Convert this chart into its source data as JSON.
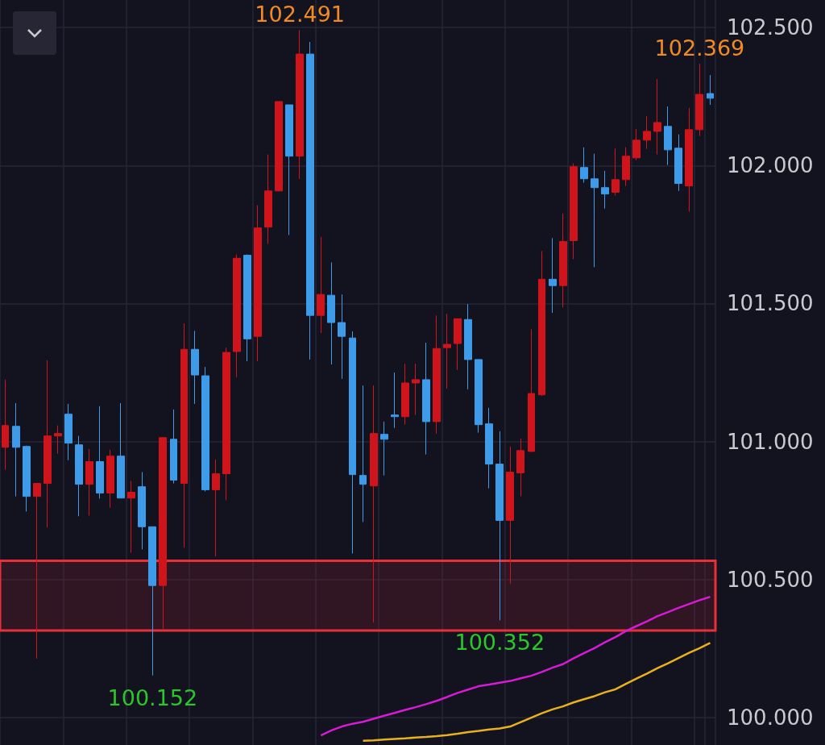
{
  "chart_data": {
    "type": "candlestick",
    "categories": [
      null,
      null,
      null,
      null,
      null,
      null,
      null,
      null,
      null,
      null,
      null,
      null,
      null,
      null,
      null,
      null,
      null,
      null,
      null,
      null,
      null,
      null,
      null,
      null,
      null,
      null,
      null,
      null,
      null,
      null,
      null,
      null,
      null,
      null,
      null,
      null,
      null,
      null,
      null,
      null,
      null,
      null,
      null,
      null,
      null,
      null,
      null,
      null,
      null,
      null,
      null,
      null,
      null,
      null,
      null,
      null,
      null,
      null,
      null,
      null,
      null,
      null,
      null,
      null,
      null,
      null,
      null,
      null
    ],
    "ohlc": [
      [
        100.979,
        101.224,
        100.897,
        101.058
      ],
      [
        101.055,
        101.139,
        100.801,
        100.979
      ],
      [
        100.982,
        100.985,
        100.746,
        100.801
      ],
      [
        100.801,
        100.85,
        100.213,
        100.848
      ],
      [
        100.848,
        101.294,
        100.688,
        101.02
      ],
      [
        101.02,
        101.058,
        100.956,
        101.029
      ],
      [
        101.099,
        101.136,
        100.932,
        100.994
      ],
      [
        100.988,
        101.02,
        100.729,
        100.845
      ],
      [
        100.845,
        100.973,
        100.731,
        100.927
      ],
      [
        100.927,
        101.128,
        100.793,
        100.813
      ],
      [
        100.813,
        100.97,
        100.76,
        100.947
      ],
      [
        100.947,
        101.139,
        100.795,
        100.795
      ],
      [
        100.795,
        100.857,
        100.597,
        100.816
      ],
      [
        100.836,
        100.889,
        100.609,
        100.691
      ],
      [
        100.691,
        100.691,
        100.152,
        100.478
      ],
      [
        100.478,
        101.014,
        100.321,
        101.014
      ],
      [
        101.008,
        101.116,
        100.848,
        100.86
      ],
      [
        100.848,
        101.428,
        100.615,
        101.334
      ],
      [
        101.334,
        101.401,
        101.136,
        101.241
      ],
      [
        101.238,
        101.27,
        100.819,
        100.825
      ],
      [
        100.825,
        100.935,
        100.583,
        100.883
      ],
      [
        100.883,
        101.34,
        100.787,
        101.323
      ],
      [
        101.326,
        101.678,
        101.233,
        101.664
      ],
      [
        101.675,
        101.678,
        101.291,
        101.372
      ],
      [
        101.381,
        101.856,
        101.291,
        101.774
      ],
      [
        101.777,
        102.04,
        101.716,
        101.908
      ],
      [
        101.908,
        102.232,
        101.908,
        102.232
      ],
      [
        102.22,
        102.22,
        101.748,
        102.034
      ],
      [
        102.034,
        102.491,
        101.952,
        102.404
      ],
      [
        102.404,
        102.448,
        101.297,
        101.457
      ],
      [
        101.457,
        101.742,
        101.393,
        101.533
      ],
      [
        101.53,
        101.649,
        101.279,
        101.431
      ],
      [
        101.431,
        101.533,
        101.227,
        101.381
      ],
      [
        101.375,
        101.399,
        100.594,
        100.88
      ],
      [
        100.877,
        101.203,
        100.708,
        100.845
      ],
      [
        100.839,
        101.203,
        100.344,
        101.029
      ],
      [
        101.026,
        101.072,
        100.877,
        101.008
      ],
      [
        101.096,
        101.25,
        101.049,
        101.09
      ],
      [
        101.09,
        101.282,
        101.061,
        101.212
      ],
      [
        101.212,
        101.282,
        101.096,
        101.224
      ],
      [
        101.224,
        101.358,
        100.953,
        101.072
      ],
      [
        101.072,
        101.457,
        101.029,
        101.337
      ],
      [
        101.34,
        101.463,
        101.192,
        101.352
      ],
      [
        101.355,
        101.445,
        101.259,
        101.445
      ],
      [
        101.442,
        101.498,
        101.189,
        101.297
      ],
      [
        101.297,
        101.297,
        101.032,
        101.061
      ],
      [
        101.064,
        101.122,
        100.83,
        100.918
      ],
      [
        100.918,
        101.037,
        100.352,
        100.714
      ],
      [
        100.714,
        100.982,
        100.484,
        100.889
      ],
      [
        100.886,
        101.011,
        100.801,
        100.967
      ],
      [
        100.964,
        101.407,
        100.962,
        101.174
      ],
      [
        101.169,
        101.69,
        101.166,
        101.588
      ],
      [
        101.588,
        101.737,
        101.466,
        101.565
      ],
      [
        101.565,
        101.827,
        101.486,
        101.725
      ],
      [
        101.728,
        102.008,
        101.661,
        101.996
      ],
      [
        101.993,
        102.066,
        101.938,
        101.952
      ],
      [
        101.952,
        102.043,
        101.632,
        101.92
      ],
      [
        101.92,
        101.981,
        101.844,
        101.897
      ],
      [
        101.903,
        102.063,
        101.891,
        101.949
      ],
      [
        101.949,
        102.066,
        101.926,
        102.034
      ],
      [
        102.028,
        102.133,
        102.019,
        102.092
      ],
      [
        102.092,
        102.179,
        102.06,
        102.124
      ],
      [
        102.124,
        102.314,
        102.04,
        102.156
      ],
      [
        102.142,
        102.214,
        102.002,
        102.057
      ],
      [
        102.063,
        102.113,
        101.908,
        101.935
      ],
      [
        101.926,
        102.209,
        101.833,
        102.13
      ],
      [
        102.13,
        102.369,
        102.107,
        102.258
      ],
      [
        102.261,
        102.328,
        102.22,
        102.244
      ]
    ],
    "colors": [
      "#d0141c",
      "#3d9be9",
      "#3d9be9",
      "#d0141c",
      "#d0141c",
      "#d0141c",
      "#3d9be9",
      "#3d9be9",
      "#d0141c",
      "#3d9be9",
      "#d0141c",
      "#3d9be9",
      "#d0141c",
      "#3d9be9",
      "#3d9be9",
      "#d0141c",
      "#3d9be9",
      "#d0141c",
      "#3d9be9",
      "#3d9be9",
      "#d0141c",
      "#d0141c",
      "#d0141c",
      "#3d9be9",
      "#d0141c",
      "#d0141c",
      "#d0141c",
      "#3d9be9",
      "#d0141c",
      "#3d9be9",
      "#d0141c",
      "#3d9be9",
      "#3d9be9",
      "#3d9be9",
      "#3d9be9",
      "#d0141c",
      "#3d9be9",
      "#3d9be9",
      "#d0141c",
      "#d0141c",
      "#3d9be9",
      "#d0141c",
      "#d0141c",
      "#d0141c",
      "#3d9be9",
      "#3d9be9",
      "#3d9be9",
      "#3d9be9",
      "#d0141c",
      "#d0141c",
      "#d0141c",
      "#d0141c",
      "#3d9be9",
      "#d0141c",
      "#d0141c",
      "#3d9be9",
      "#3d9be9",
      "#3d9be9",
      "#d0141c",
      "#d0141c",
      "#d0141c",
      "#d0141c",
      "#d0141c",
      "#3d9be9",
      "#3d9be9",
      "#d0141c",
      "#d0141c",
      "#3d9be9"
    ],
    "series": [
      {
        "type": "line",
        "color": "#d61ad6",
        "values": [
          null,
          null,
          null,
          null,
          null,
          null,
          null,
          null,
          null,
          null,
          null,
          null,
          null,
          null,
          null,
          null,
          null,
          null,
          null,
          null,
          null,
          null,
          null,
          null,
          null,
          null,
          null,
          null,
          null,
          null,
          99.935,
          99.953,
          99.967,
          99.977,
          99.984,
          99.995,
          100.006,
          100.016,
          100.027,
          100.037,
          100.048,
          100.06,
          100.074,
          100.089,
          100.101,
          100.113,
          100.119,
          100.126,
          100.132,
          100.142,
          100.151,
          100.165,
          100.18,
          100.193,
          100.214,
          100.233,
          100.251,
          100.272,
          100.291,
          100.313,
          100.331,
          100.348,
          100.367,
          100.382,
          100.397,
          100.411,
          100.425,
          100.437
        ]
      },
      {
        "type": "line",
        "color": "#e8b21c",
        "values": [
          null,
          null,
          null,
          null,
          null,
          null,
          null,
          null,
          null,
          null,
          null,
          null,
          null,
          null,
          null,
          null,
          null,
          null,
          null,
          null,
          null,
          null,
          null,
          null,
          null,
          null,
          null,
          null,
          null,
          null,
          null,
          null,
          null,
          null,
          99.915,
          99.917,
          99.92,
          99.922,
          99.924,
          99.927,
          99.929,
          99.932,
          99.936,
          99.941,
          99.947,
          99.951,
          99.956,
          99.96,
          99.967,
          99.983,
          99.999,
          100.015,
          100.029,
          100.04,
          100.054,
          100.066,
          100.077,
          100.091,
          100.102,
          100.122,
          100.141,
          100.159,
          100.179,
          100.196,
          100.215,
          100.234,
          100.251,
          100.27
        ]
      }
    ],
    "ylim": [
      99.9,
      102.6
    ],
    "yticks": [
      {
        "value": 100,
        "label": "100.000"
      },
      {
        "value": 100.5,
        "label": "100.500"
      },
      {
        "value": 101,
        "label": "101.000"
      },
      {
        "value": 101.5,
        "label": "101.500"
      },
      {
        "value": 102,
        "label": "102.000"
      },
      {
        "value": 102.5,
        "label": "102.500"
      }
    ],
    "annotations": [
      {
        "text": "102.491",
        "y": 102.491
      },
      {
        "text": "102.369",
        "y": 102.369
      },
      {
        "text": "100.152",
        "y": 100.152
      },
      {
        "text": "100.352",
        "y": 100.352
      }
    ],
    "bands": [
      {
        "axis": "y",
        "from": 100.315,
        "to": 100.568,
        "color": "#e8303a"
      }
    ],
    "grid": true,
    "marker": "none",
    "tick_labels": "y"
  }
}
